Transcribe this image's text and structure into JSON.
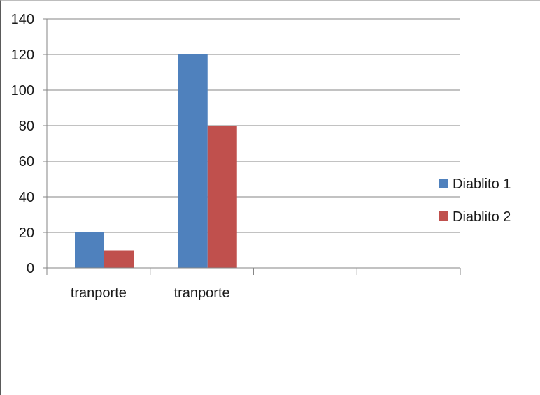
{
  "chart_data": {
    "type": "bar",
    "title": "",
    "xlabel": "",
    "ylabel": "",
    "categories": [
      "tranporte",
      "tranporte",
      "",
      ""
    ],
    "series": [
      {
        "name": "Diablito 1",
        "color": "#4f81bd",
        "values": [
          20,
          120,
          null,
          null
        ]
      },
      {
        "name": "Diablito 2",
        "color": "#c0504d",
        "values": [
          10,
          80,
          null,
          null
        ]
      }
    ],
    "ylim": [
      0,
      140
    ],
    "yticks": [
      "0",
      "20",
      "40",
      "60",
      "80",
      "100",
      "120",
      "140"
    ],
    "grid": true,
    "legend_position": "right"
  }
}
